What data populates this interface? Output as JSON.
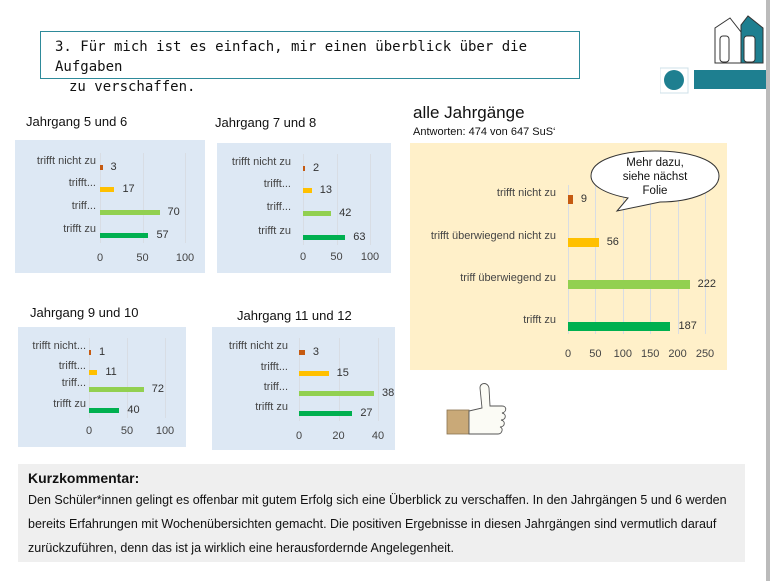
{
  "question": {
    "line1": "3. Für mich ist es einfach, mir einen überblick über die Aufgaben",
    "line2": "zu verschaffen."
  },
  "callout": {
    "line1": "Mehr dazu,",
    "line2": "siehe nächst",
    "line3": "Folie"
  },
  "overall": {
    "title": "alle Jahrgänge",
    "subtitle": "Antworten: 474 von 647 SuS‘"
  },
  "comment": {
    "heading": "Kurzkommentar:",
    "text": "Den Schüler*innen gelingt es offenbar mit gutem Erfolg sich eine Überblick zu verschaffen. In den Jahrgängen 5 und 6 werden bereits Erfahrungen mit Wochenübersichten gemacht. Die positiven Ergebnisse in diesen Jahrgängen sind vermutlich darauf zurückzuführen, denn das ist ja wirklich eine herausfordernde Angelegenheit."
  },
  "colors": {
    "nicht": "#c55a11",
    "ueberw_nicht": "#ffc000",
    "ueberw": "#92d050",
    "zu": "#00b050",
    "blue_bg": "#dde8f4",
    "yellow_bg": "#fff0c9",
    "brand": "#1e7f90"
  },
  "chart_data": [
    {
      "type": "bar",
      "title": "Jahrgang 5 und 6",
      "categories": [
        "trifft nicht zu",
        "trifft...",
        "triff...",
        "trifft zu"
      ],
      "values": [
        3,
        17,
        70,
        57
      ],
      "xticks": [
        "0",
        "50",
        "100"
      ],
      "xlim": [
        0,
        100
      ]
    },
    {
      "type": "bar",
      "title": "Jahrgang 7 und 8",
      "categories": [
        "trifft nicht zu",
        "trifft...",
        "triff...",
        "trifft zu"
      ],
      "values": [
        2,
        13,
        42,
        63
      ],
      "xticks": [
        "0",
        "50",
        "100"
      ],
      "xlim": [
        0,
        100
      ]
    },
    {
      "type": "bar",
      "title": "Jahrgang 9 und 10",
      "categories": [
        "trifft nicht...",
        "trifft...",
        "triff...",
        "trifft zu"
      ],
      "values": [
        1,
        11,
        72,
        40
      ],
      "xticks": [
        "0",
        "50",
        "100"
      ],
      "xlim": [
        0,
        100
      ]
    },
    {
      "type": "bar",
      "title": "Jahrgang 11 und 12",
      "categories": [
        "trifft nicht zu",
        "trifft...",
        "triff...",
        "trifft zu"
      ],
      "values": [
        3,
        15,
        38,
        27
      ],
      "xticks": [
        "0",
        "20",
        "40"
      ],
      "xlim": [
        0,
        40
      ]
    },
    {
      "type": "bar",
      "title": "alle Jahrgänge",
      "categories": [
        "trifft nicht zu",
        "trifft überwiegend nicht zu",
        "triff überwiegend zu",
        "trifft zu"
      ],
      "values": [
        9,
        56,
        222,
        187
      ],
      "xticks": [
        "0",
        "50",
        "100",
        "150",
        "200",
        "250"
      ],
      "xlim": [
        0,
        250
      ]
    }
  ]
}
